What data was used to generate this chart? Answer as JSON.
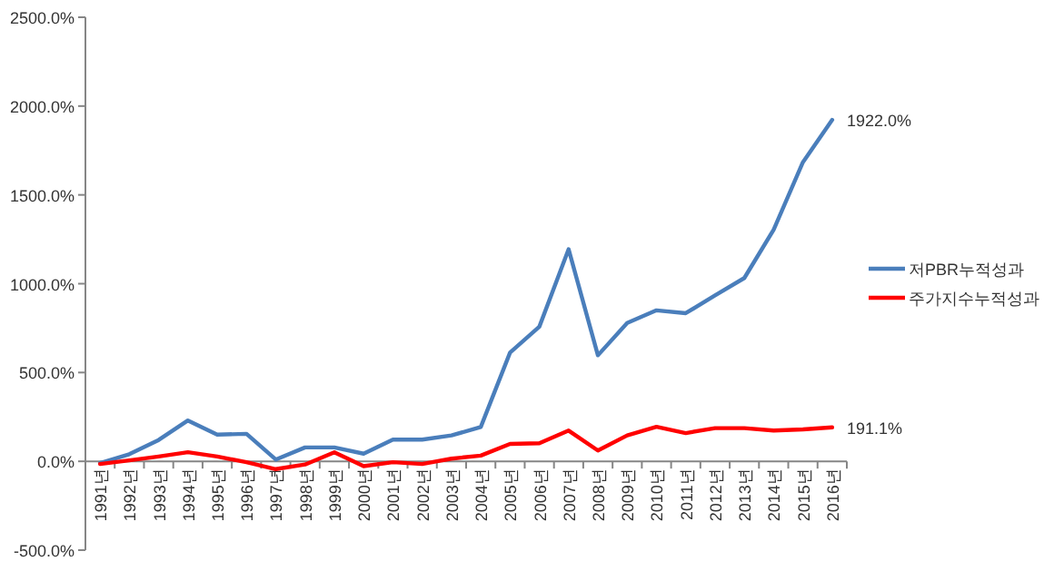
{
  "chart_data": {
    "type": "line",
    "categories": [
      "1991년",
      "1992년",
      "1993년",
      "1994년",
      "1995년",
      "1996년",
      "1997년",
      "1998년",
      "1999년",
      "2000년",
      "2001년",
      "2002년",
      "2003년",
      "2004년",
      "2005년",
      "2006년",
      "2007년",
      "2008년",
      "2009년",
      "2010년",
      "2011년",
      "2012년",
      "2013년",
      "2014년",
      "2015년",
      "2016년"
    ],
    "series": [
      {
        "name": "저PBR누적성과",
        "color": "#4a7ebb",
        "values": [
          -10,
          40,
          120,
          230,
          150,
          155,
          10,
          78,
          78,
          43,
          122,
          122,
          146,
          193,
          612,
          758,
          1194,
          597,
          779,
          850,
          834,
          934,
          1032,
          1304,
          1684,
          1922
        ],
        "value_labels": [
          null,
          null,
          null,
          null,
          null,
          null,
          null,
          null,
          null,
          null,
          null,
          null,
          null,
          null,
          null,
          null,
          null,
          null,
          null,
          null,
          null,
          null,
          null,
          null,
          null,
          "1922.0%"
        ]
      },
      {
        "name": "주가지수누적성과",
        "color": "#ff0000",
        "values": [
          -15,
          5,
          27,
          51,
          27,
          -5,
          -44,
          -18,
          51,
          -27,
          -5,
          -15,
          15,
          32,
          98,
          102,
          173,
          61,
          146,
          194,
          159,
          187,
          187,
          173,
          180,
          191.1
        ],
        "value_labels": [
          null,
          null,
          null,
          null,
          null,
          null,
          null,
          null,
          null,
          null,
          null,
          null,
          null,
          null,
          null,
          null,
          null,
          null,
          null,
          null,
          null,
          null,
          null,
          null,
          null,
          "191.1%"
        ]
      }
    ],
    "ylim": [
      -500,
      2500
    ],
    "yticks": [
      {
        "value": -500,
        "label": "-500.0%"
      },
      {
        "value": 0,
        "label": "0.0%"
      },
      {
        "value": 500,
        "label": "500.0%"
      },
      {
        "value": 1000,
        "label": "1000.0%"
      },
      {
        "value": 1500,
        "label": "1500.0%"
      },
      {
        "value": 2000,
        "label": "2000.0%"
      },
      {
        "value": 2500,
        "label": "2500.0%"
      }
    ],
    "grid": false,
    "legend": "right",
    "line_style": "solid",
    "marker": "none"
  }
}
